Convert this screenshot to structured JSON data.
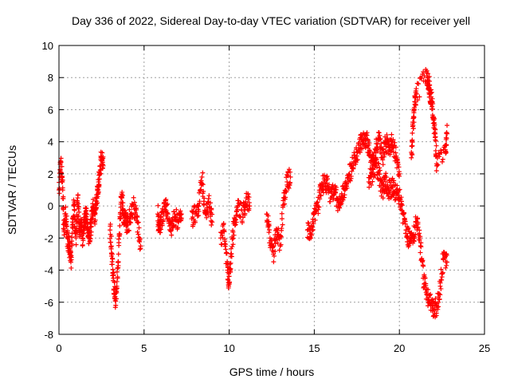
{
  "chart_data": {
    "type": "scatter",
    "title": "Day 336 of 2022, Sidereal Day-to-day VTEC variation (SDTVAR) for receiver yell",
    "xlabel": "GPS time / hours",
    "ylabel": "SDTVAR / TECUs",
    "xlim": [
      0,
      25
    ],
    "ylim": [
      -8,
      10
    ],
    "xticks": [
      0,
      5,
      10,
      15,
      20,
      25
    ],
    "yticks": [
      -8,
      -6,
      -4,
      -2,
      0,
      2,
      4,
      6,
      8,
      10
    ],
    "grid": true,
    "marker": "+",
    "color": "#ff0000",
    "series": [
      {
        "name": "SDTVAR",
        "segments": [
          {
            "x": [
              0.0,
              0.1,
              0.2,
              0.3,
              0.4,
              0.5,
              0.6,
              0.7,
              0.8,
              0.9,
              1.0,
              1.1,
              1.2,
              1.3,
              1.4,
              1.5,
              1.6,
              1.7,
              1.8,
              1.9,
              2.0,
              2.1,
              2.2,
              2.3,
              2.4,
              2.5,
              2.6
            ],
            "y": [
              1.0,
              2.8,
              1.5,
              -1.5,
              -0.5,
              -2.0,
              -2.5,
              -3.5,
              -1.0,
              0.0,
              -2.0,
              0.5,
              -1.5,
              -1.0,
              -2.0,
              -1.0,
              -0.5,
              -1.5,
              -2.0,
              -1.0,
              0.0,
              -1.0,
              0.5,
              1.0,
              2.0,
              3.0,
              2.5
            ]
          },
          {
            "x": [
              3.0,
              3.1,
              3.2,
              3.3,
              3.4,
              3.5,
              3.6,
              3.7,
              3.8,
              3.9,
              4.0,
              4.2,
              4.4,
              4.6,
              4.8
            ],
            "y": [
              -1.5,
              -3.0,
              -4.5,
              -5.8,
              -5.0,
              -3.0,
              -0.5,
              0.5,
              -1.0,
              -0.5,
              -1.5,
              -0.5,
              0.0,
              -1.0,
              -2.5
            ]
          },
          {
            "x": [
              5.8,
              5.9,
              6.0,
              6.2,
              6.4,
              6.6,
              6.8,
              7.0,
              7.2
            ],
            "y": [
              -0.5,
              -1.5,
              -1.0,
              0.0,
              -0.5,
              -1.5,
              -0.5,
              -1.0,
              -0.5
            ]
          },
          {
            "x": [
              7.8,
              8.0,
              8.2,
              8.4,
              8.6,
              8.8,
              9.0
            ],
            "y": [
              -0.8,
              -0.5,
              0.0,
              1.8,
              -0.5,
              0.2,
              -1.0
            ]
          },
          {
            "x": [
              9.5,
              9.7,
              9.9,
              10.0,
              10.1,
              10.3,
              10.5,
              10.8,
              11.0,
              11.2
            ],
            "y": [
              -2.0,
              -1.5,
              -4.0,
              -4.8,
              -3.0,
              -1.0,
              0.0,
              -0.5,
              0.5,
              0.0
            ]
          },
          {
            "x": [
              12.2,
              12.4,
              12.6,
              12.8,
              13.0,
              13.2,
              13.4,
              13.6
            ],
            "y": [
              -0.5,
              -2.0,
              -3.0,
              -1.5,
              -2.5,
              0.5,
              1.5,
              1.8
            ]
          },
          {
            "x": [
              14.6,
              14.8,
              15.0,
              15.2,
              15.4,
              15.6,
              15.8,
              16.0,
              16.2,
              16.4,
              16.6,
              16.8,
              17.0,
              17.2,
              17.4,
              17.6,
              17.8,
              18.0,
              18.2,
              18.4,
              18.6,
              18.8,
              19.0,
              19.2,
              19.4,
              19.6,
              19.8,
              20.0
            ],
            "y": [
              -1.5,
              -2.0,
              -0.5,
              0.0,
              1.0,
              1.5,
              1.2,
              0.5,
              1.0,
              0.0,
              0.5,
              1.0,
              1.5,
              2.5,
              3.0,
              3.5,
              4.0,
              4.2,
              3.8,
              2.5,
              3.5,
              4.2,
              3.0,
              4.0,
              3.5,
              4.0,
              3.0,
              2.0
            ]
          },
          {
            "x": [
              18.2,
              18.4,
              18.6,
              18.8,
              19.0,
              19.2,
              19.4,
              19.6,
              19.8,
              20.0,
              20.2,
              20.4,
              20.6,
              20.8,
              21.0,
              21.2,
              21.4,
              21.6,
              21.8,
              22.0,
              22.2,
              22.4,
              22.6,
              22.8
            ],
            "y": [
              1.5,
              2.0,
              2.5,
              2.0,
              1.0,
              1.5,
              1.0,
              1.2,
              0.8,
              0.5,
              -0.5,
              -1.5,
              -2.2,
              -2.0,
              -1.0,
              -2.0,
              -4.5,
              -5.5,
              -6.0,
              -6.5,
              -6.2,
              -5.0,
              -3.0,
              -3.5
            ]
          },
          {
            "x": [
              20.7,
              20.8,
              20.9,
              21.0,
              21.6,
              21.7,
              21.8,
              21.9,
              22.0,
              22.1,
              22.2,
              22.7,
              22.8
            ],
            "y": [
              3.0,
              5.0,
              6.5,
              7.0,
              8.3,
              7.8,
              7.2,
              6.5,
              5.5,
              4.5,
              2.5,
              3.5,
              4.5
            ]
          }
        ]
      }
    ]
  }
}
